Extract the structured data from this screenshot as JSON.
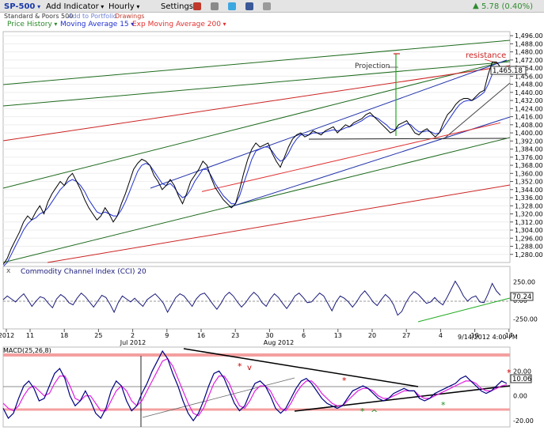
{
  "toolbar": {
    "symbol": "SP-500",
    "add_indicator": "Add Indicator",
    "interval": "Hourly",
    "settings": "Settings",
    "change": "5.78 (0.40%)",
    "change_color": "#2e8b2e"
  },
  "subtitle": {
    "name": "Standard & Poors 500",
    "add_portfolio": "Add to Portfolio",
    "drawings": "Drawings"
  },
  "legend": {
    "price_history": "Price History",
    "ma15": "Moving Average 15",
    "ema200": "Exp Moving Average 200"
  },
  "annotations": {
    "projection": "Projection",
    "resistance": "resistance",
    "timestamp": "9/14/2012 4:00 PM",
    "cci_note_v": "v",
    "macd_up_marker": "^"
  },
  "cci_label": "Commodity Channel Index (CCI) 20",
  "macd_label": "MACD(25,26,8)",
  "colors": {
    "price": "#000000",
    "ma15": "#1f2fd1",
    "ema200": "#e03030",
    "channel_green": "#1e6b1e",
    "channel_red": "#cc2222",
    "channel_blue": "#2233aa",
    "macd_signal": "#e020e0",
    "macd_line": "#000080",
    "cci_line": "#1a1a7a"
  },
  "chart_data": [
    {
      "type": "line",
      "title": "SP-500 Hourly",
      "ylim": [
        1272,
        1500
      ],
      "y_ticks": [
        1280,
        1288,
        1296,
        1304,
        1312,
        1320,
        1328,
        1336,
        1344,
        1352,
        1360,
        1368,
        1376,
        1384,
        1392,
        1400,
        1408,
        1416,
        1424,
        1432,
        1440,
        1448,
        1456,
        1464,
        1472,
        1480,
        1488,
        1496
      ],
      "last_value": "1,465.18",
      "x_tick_labels": [
        "2012",
        "11",
        "18",
        "25",
        "2",
        "9",
        "16",
        "23",
        "30",
        "6",
        "13",
        "20",
        "27",
        "4",
        "10",
        "17"
      ],
      "x_sub_labels": [
        "Jul 2012",
        "Aug 2012"
      ],
      "price": [
        1270,
        1276,
        1286,
        1294,
        1302,
        1312,
        1318,
        1314,
        1322,
        1328,
        1320,
        1332,
        1340,
        1346,
        1352,
        1348,
        1356,
        1360,
        1352,
        1344,
        1334,
        1326,
        1320,
        1314,
        1318,
        1326,
        1320,
        1312,
        1318,
        1330,
        1340,
        1352,
        1364,
        1370,
        1374,
        1372,
        1368,
        1358,
        1352,
        1344,
        1348,
        1354,
        1348,
        1338,
        1330,
        1340,
        1352,
        1358,
        1364,
        1372,
        1368,
        1356,
        1346,
        1340,
        1334,
        1330,
        1326,
        1330,
        1344,
        1360,
        1374,
        1384,
        1390,
        1386,
        1388,
        1390,
        1380,
        1372,
        1366,
        1376,
        1386,
        1394,
        1398,
        1400,
        1396,
        1398,
        1402,
        1400,
        1398,
        1402,
        1404,
        1406,
        1400,
        1404,
        1408,
        1406,
        1410,
        1412,
        1414,
        1418,
        1420,
        1416,
        1412,
        1408,
        1404,
        1400,
        1402,
        1408,
        1410,
        1412,
        1406,
        1400,
        1398,
        1402,
        1404,
        1400,
        1396,
        1400,
        1410,
        1418,
        1422,
        1428,
        1432,
        1434,
        1434,
        1432,
        1436,
        1440,
        1442,
        1458,
        1470,
        1470,
        1465
      ],
      "ma15": [
        1268,
        1272,
        1280,
        1288,
        1296,
        1304,
        1310,
        1314,
        1316,
        1320,
        1322,
        1326,
        1332,
        1338,
        1344,
        1348,
        1352,
        1354,
        1352,
        1348,
        1342,
        1334,
        1328,
        1322,
        1320,
        1322,
        1320,
        1318,
        1318,
        1324,
        1332,
        1342,
        1352,
        1362,
        1368,
        1370,
        1368,
        1362,
        1356,
        1350,
        1348,
        1350,
        1346,
        1340,
        1336,
        1338,
        1344,
        1352,
        1358,
        1364,
        1364,
        1358,
        1350,
        1344,
        1338,
        1334,
        1330,
        1330,
        1338,
        1350,
        1362,
        1374,
        1382,
        1384,
        1386,
        1386,
        1382,
        1376,
        1372,
        1374,
        1380,
        1388,
        1394,
        1398,
        1398,
        1398,
        1400,
        1400,
        1400,
        1401,
        1402,
        1403,
        1402,
        1403,
        1405,
        1406,
        1408,
        1410,
        1412,
        1415,
        1417,
        1416,
        1414,
        1411,
        1408,
        1404,
        1403,
        1405,
        1407,
        1409,
        1408,
        1404,
        1401,
        1401,
        1402,
        1401,
        1399,
        1400,
        1405,
        1411,
        1417,
        1423,
        1428,
        1431,
        1432,
        1432,
        1434,
        1437,
        1440,
        1448,
        1458,
        1464,
        1464
      ],
      "ema200": [
        1342,
        1346,
        1350,
        1354,
        1358,
        1362,
        1366,
        1370,
        1374,
        1378,
        1382,
        1386,
        1390,
        1394,
        1398,
        1402,
        1406,
        1410
      ]
    },
    {
      "type": "line",
      "title": "Commodity Channel Index (CCI) 20",
      "ylim": [
        -300,
        300
      ],
      "y_ticks": [
        250,
        0,
        -250
      ],
      "last_value": "70.24",
      "values": [
        10,
        60,
        20,
        -20,
        40,
        90,
        10,
        -80,
        -10,
        50,
        30,
        -40,
        -100,
        20,
        80,
        40,
        -30,
        -60,
        30,
        100,
        50,
        -20,
        -90,
        -10,
        70,
        40,
        -50,
        -160,
        -30,
        60,
        20,
        -20,
        30,
        -30,
        -80,
        10,
        50,
        90,
        30,
        -40,
        -160,
        -60,
        40,
        90,
        60,
        -10,
        -80,
        20,
        80,
        100,
        30,
        -50,
        -120,
        -40,
        60,
        110,
        60,
        -20,
        -90,
        -30,
        50,
        110,
        60,
        -30,
        -80,
        20,
        90,
        40,
        -40,
        -110,
        -30,
        60,
        100,
        40,
        -30,
        -20,
        40,
        100,
        60,
        -40,
        -140,
        -20,
        60,
        30,
        -20,
        -90,
        -20,
        70,
        130,
        60,
        -20,
        -70,
        10,
        80,
        30,
        -60,
        -200,
        -150,
        -30,
        60,
        120,
        80,
        20,
        -40,
        -20,
        40,
        -20,
        -60,
        40,
        150,
        260,
        170,
        60,
        -10,
        40,
        60,
        -20,
        -30,
        90,
        230,
        130,
        70
      ]
    },
    {
      "type": "line",
      "title": "MACD(25,26,8)",
      "ylim": [
        -25,
        38
      ],
      "y_ticks": [
        20,
        0,
        -20
      ],
      "last_value": "10.06",
      "macd": [
        -10,
        -18,
        -14,
        -2,
        8,
        12,
        6,
        -4,
        -2,
        8,
        18,
        22,
        14,
        0,
        -8,
        -4,
        4,
        -4,
        -14,
        -18,
        -10,
        4,
        12,
        8,
        -4,
        -12,
        -8,
        2,
        10,
        20,
        28,
        36,
        30,
        18,
        8,
        -4,
        -14,
        -20,
        -14,
        -4,
        8,
        18,
        20,
        14,
        4,
        -6,
        -12,
        -8,
        2,
        10,
        12,
        8,
        0,
        -10,
        -14,
        -10,
        -2,
        6,
        12,
        14,
        10,
        4,
        -2,
        -6,
        -8,
        -10,
        -8,
        -2,
        4,
        6,
        8,
        6,
        2,
        -2,
        -4,
        -2,
        2,
        4,
        6,
        4,
        4,
        -2,
        -4,
        -2,
        2,
        4,
        6,
        8,
        10,
        14,
        16,
        12,
        8,
        4,
        2,
        4,
        8,
        12,
        10
      ],
      "signal": [
        -6,
        -10,
        -12,
        -8,
        0,
        6,
        8,
        4,
        0,
        2,
        10,
        16,
        16,
        8,
        -2,
        -4,
        0,
        0,
        -6,
        -12,
        -12,
        -4,
        4,
        8,
        4,
        -4,
        -8,
        -4,
        4,
        12,
        20,
        28,
        30,
        24,
        14,
        4,
        -6,
        -14,
        -16,
        -10,
        0,
        10,
        16,
        16,
        10,
        0,
        -8,
        -10,
        -4,
        4,
        8,
        8,
        4,
        -4,
        -10,
        -12,
        -6,
        2,
        8,
        12,
        12,
        8,
        2,
        -2,
        -6,
        -8,
        -8,
        -4,
        0,
        4,
        6,
        6,
        4,
        0,
        -2,
        -2,
        0,
        2,
        4,
        4,
        4,
        0,
        -2,
        -2,
        0,
        2,
        4,
        6,
        8,
        10,
        12,
        12,
        10,
        6,
        4,
        4,
        6,
        8,
        9
      ]
    }
  ]
}
